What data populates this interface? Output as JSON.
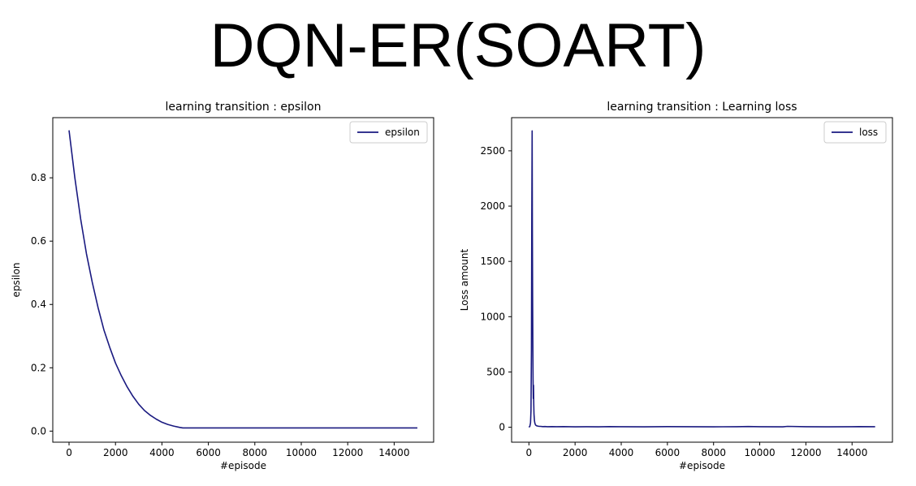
{
  "page": {
    "title": "DQN-ER(SOART)"
  },
  "colors": {
    "series": "#1a1a80",
    "axis": "#000000",
    "legend_border": "#cccccc"
  },
  "chart_data": [
    {
      "type": "line",
      "title": "learning transition : epsilon",
      "xlabel": "#episode",
      "ylabel": "epsilon",
      "xlim": [
        -700,
        15700
      ],
      "ylim": [
        -0.035,
        0.99
      ],
      "xticks": [
        0,
        2000,
        4000,
        6000,
        8000,
        10000,
        12000,
        14000
      ],
      "xtick_labels": [
        "0",
        "2000",
        "4000",
        "6000",
        "8000",
        "10000",
        "12000",
        "14000"
      ],
      "yticks": [
        0.0,
        0.2,
        0.4,
        0.6,
        0.8
      ],
      "ytick_labels": [
        "0.0",
        "0.2",
        "0.4",
        "0.6",
        "0.8"
      ],
      "grid": false,
      "legend": "top-right",
      "series": [
        {
          "name": "epsilon",
          "color": "#1a1a80",
          "x": [
            0,
            250,
            500,
            750,
            1000,
            1250,
            1500,
            1750,
            2000,
            2250,
            2500,
            2750,
            3000,
            3250,
            3500,
            3750,
            4000,
            4250,
            4500,
            4750,
            4900,
            6000,
            8000,
            10000,
            12000,
            14000,
            15000
          ],
          "y": [
            0.95,
            0.8,
            0.67,
            0.56,
            0.47,
            0.39,
            0.32,
            0.265,
            0.215,
            0.175,
            0.14,
            0.11,
            0.085,
            0.065,
            0.05,
            0.038,
            0.028,
            0.021,
            0.016,
            0.012,
            0.01,
            0.01,
            0.01,
            0.01,
            0.01,
            0.01,
            0.01
          ]
        }
      ]
    },
    {
      "type": "line",
      "title": "learning transition : Learning loss",
      "xlabel": "#episode",
      "ylabel": "Loss amount",
      "xlim": [
        -750,
        15750
      ],
      "ylim": [
        -135,
        2800
      ],
      "xticks": [
        0,
        2000,
        4000,
        6000,
        8000,
        10000,
        12000,
        14000
      ],
      "xtick_labels": [
        "0",
        "2000",
        "4000",
        "6000",
        "8000",
        "10000",
        "12000",
        "14000"
      ],
      "yticks": [
        0,
        500,
        1000,
        1500,
        2000,
        2500
      ],
      "ytick_labels": [
        "0",
        "500",
        "1000",
        "1500",
        "2000",
        "2500"
      ],
      "grid": false,
      "legend": "top-right",
      "series": [
        {
          "name": "loss",
          "color": "#1a1a80",
          "x": [
            0,
            40,
            70,
            90,
            110,
            125,
            140,
            150,
            160,
            170,
            180,
            190,
            200,
            210,
            220,
            230,
            240,
            255,
            270,
            290,
            320,
            360,
            400,
            450,
            500,
            600,
            700,
            800,
            1000,
            1200,
            1500,
            2000,
            2500,
            3000,
            3500,
            4000,
            5000,
            6000,
            7000,
            8000,
            9000,
            9500,
            10000,
            11000,
            11200,
            12000,
            13000,
            14000,
            14300,
            15000
          ],
          "y": [
            0,
            8,
            40,
            150,
            700,
            1900,
            2680,
            1800,
            1200,
            780,
            430,
            260,
            380,
            210,
            120,
            90,
            60,
            40,
            30,
            20,
            15,
            12,
            10,
            8,
            8,
            6,
            7,
            5,
            6,
            5,
            6,
            4,
            5,
            4,
            6,
            5,
            4,
            6,
            5,
            4,
            5,
            7,
            5,
            4,
            8,
            5,
            4,
            5,
            6,
            5
          ]
        }
      ]
    }
  ]
}
